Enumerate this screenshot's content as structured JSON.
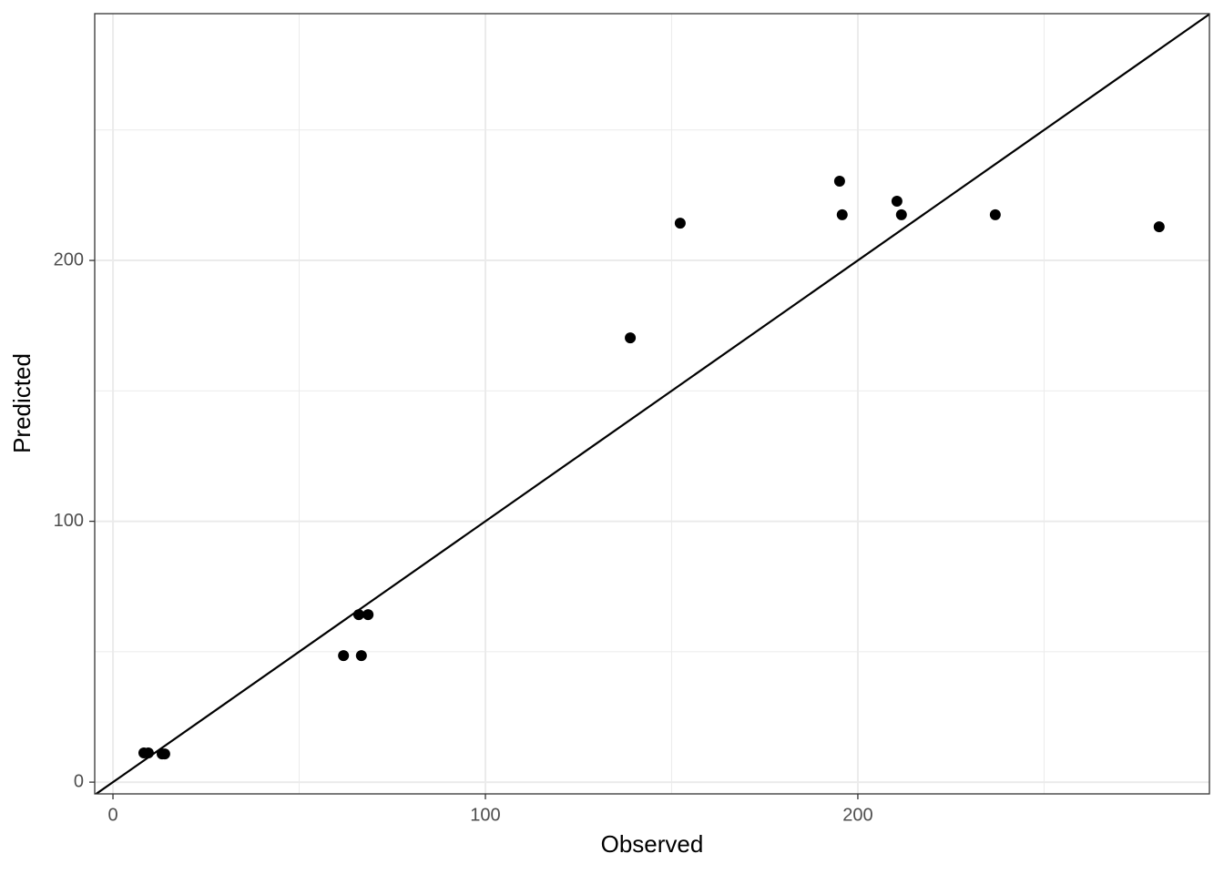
{
  "chart_data": {
    "type": "scatter",
    "x_label": "Observed",
    "y_label": "Predicted",
    "x": [
      8.3,
      9.5,
      13.2,
      13.9,
      61.9,
      66.7,
      66.0,
      68.5,
      138.9,
      152.3,
      195.1,
      195.8,
      210.5,
      211.7,
      236.9,
      280.9
    ],
    "values": [
      11.2,
      11.2,
      10.8,
      10.8,
      48.5,
      48.5,
      64.2,
      64.2,
      170.3,
      214.3,
      230.4,
      217.5,
      222.7,
      217.5,
      217.5,
      212.9
    ],
    "color": "#000000",
    "xlim": [
      -4.9,
      294.4
    ],
    "ylim": [
      -4.5,
      294.6
    ],
    "xticks": [
      0,
      100,
      200
    ],
    "yticks": [
      0,
      100,
      200
    ],
    "xminor": [
      50,
      150,
      250
    ],
    "yminor": [
      50,
      150,
      250
    ],
    "grid": true,
    "reference_line": {
      "slope": 1,
      "intercept": 0
    }
  }
}
